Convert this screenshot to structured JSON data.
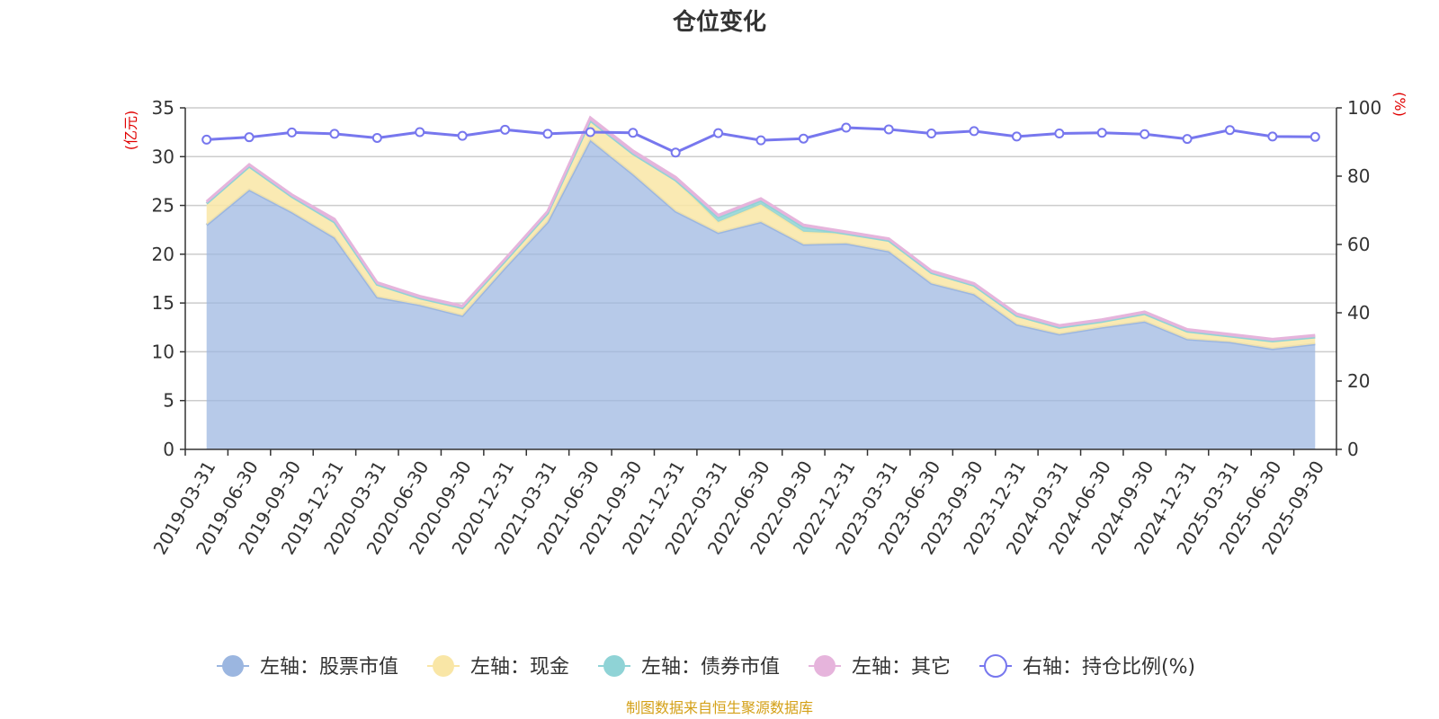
{
  "chart_data": {
    "type": "area",
    "title": "仓位变化",
    "left_axis_unit": "(亿元)",
    "right_axis_unit": "(%)",
    "left_ylim": [
      0,
      35
    ],
    "left_yticks": [
      0,
      5,
      10,
      15,
      20,
      25,
      30,
      35
    ],
    "right_ylim": [
      0,
      100
    ],
    "right_yticks": [
      0,
      20,
      40,
      60,
      80,
      100
    ],
    "grid": true,
    "legend_position": "bottom",
    "x": [
      "2019-03-31",
      "2019-06-30",
      "2019-09-30",
      "2019-12-31",
      "2020-03-31",
      "2020-06-30",
      "2020-09-30",
      "2020-12-31",
      "2021-03-31",
      "2021-06-30",
      "2021-09-30",
      "2021-12-31",
      "2022-03-31",
      "2022-06-30",
      "2022-09-30",
      "2022-12-31",
      "2023-03-31",
      "2023-06-30",
      "2023-09-30",
      "2023-12-31",
      "2024-03-31",
      "2024-06-30",
      "2024-09-30",
      "2024-12-31",
      "2025-03-31",
      "2025-06-30",
      "2025-09-30"
    ],
    "series": [
      {
        "name": "左轴：股票市值",
        "axis": "left",
        "stacked": true,
        "color": "#9bb6e0",
        "values": [
          23.0,
          26.6,
          24.3,
          21.7,
          15.6,
          14.8,
          13.7,
          18.6,
          23.3,
          31.7,
          28.2,
          24.4,
          22.2,
          23.3,
          21.0,
          21.1,
          20.3,
          17.0,
          15.9,
          12.8,
          11.8,
          12.5,
          13.1,
          11.3,
          11.0,
          10.3,
          10.8
        ]
      },
      {
        "name": "左轴：现金",
        "axis": "left",
        "stacked": true,
        "color": "#f9e6a6",
        "values": [
          2.2,
          2.4,
          1.6,
          1.6,
          1.3,
          0.7,
          0.8,
          0.7,
          0.9,
          2.0,
          2.1,
          3.2,
          1.1,
          1.8,
          1.3,
          1.0,
          1.1,
          1.1,
          0.9,
          0.9,
          0.7,
          0.6,
          0.8,
          0.8,
          0.6,
          0.8,
          0.7
        ]
      },
      {
        "name": "左轴：债券市值",
        "axis": "left",
        "stacked": true,
        "color": "#8fd3d6",
        "values": [
          0,
          0,
          0,
          0,
          0,
          0,
          0,
          0,
          0,
          0,
          0,
          0,
          0.5,
          0.4,
          0.5,
          0,
          0,
          0,
          0,
          0,
          0,
          0,
          0,
          0,
          0,
          0,
          0
        ]
      },
      {
        "name": "左轴：其它",
        "axis": "left",
        "stacked": true,
        "color": "#e6b4dc",
        "values": [
          0.2,
          0.2,
          0.2,
          0.3,
          0.2,
          0.2,
          0.2,
          0.2,
          0.2,
          0.3,
          0.3,
          0.3,
          0.2,
          0.2,
          0.2,
          0.2,
          0.2,
          0.2,
          0.2,
          0.2,
          0.2,
          0.2,
          0.2,
          0.2,
          0.2,
          0.2,
          0.2
        ]
      },
      {
        "name": "右轴：持仓比例(%)",
        "axis": "right",
        "type": "line",
        "color": "#7777ee",
        "values": [
          90.7,
          91.4,
          92.8,
          92.4,
          91.2,
          92.9,
          91.8,
          93.6,
          92.4,
          92.9,
          92.7,
          86.9,
          92.6,
          90.5,
          91.0,
          94.2,
          93.7,
          92.5,
          93.2,
          91.6,
          92.5,
          92.7,
          92.3,
          90.9,
          93.5,
          91.6,
          91.5
        ]
      }
    ]
  },
  "source": "制图数据来自恒生聚源数据库"
}
